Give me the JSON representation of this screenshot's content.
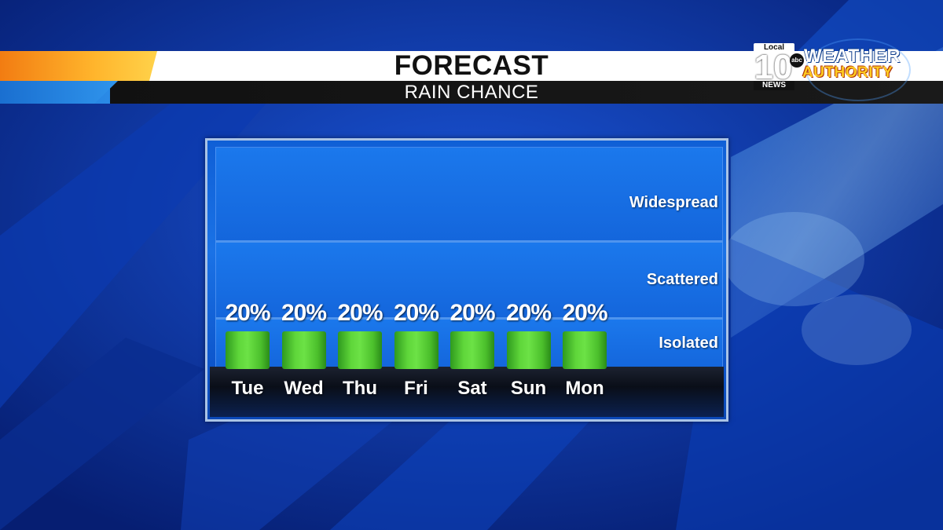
{
  "header": {
    "title": "FORECAST",
    "subtitle": "RAIN CHANCE"
  },
  "logo": {
    "local": "Local",
    "number": "10",
    "network": "abc",
    "news": "NEWS",
    "weather": "WEATHER",
    "authority": "AUTHORITY"
  },
  "colors": {
    "bar": "#5fd63a",
    "accent_orange": "#f08a16",
    "panel_blue": "#1466dc"
  },
  "chart_data": {
    "type": "bar",
    "title": "FORECAST",
    "subtitle": "RAIN CHANCE",
    "categories": [
      "Tue",
      "Wed",
      "Thu",
      "Fri",
      "Sat",
      "Sun",
      "Mon"
    ],
    "values": [
      20,
      20,
      20,
      20,
      20,
      20,
      20
    ],
    "value_labels": [
      "20%",
      "20%",
      "20%",
      "20%",
      "20%",
      "20%",
      "20%"
    ],
    "unit": "%",
    "bands": [
      "Widespread",
      "Scattered",
      "Isolated"
    ],
    "ylim": [
      0,
      100
    ],
    "legend": "none",
    "grid": false
  }
}
